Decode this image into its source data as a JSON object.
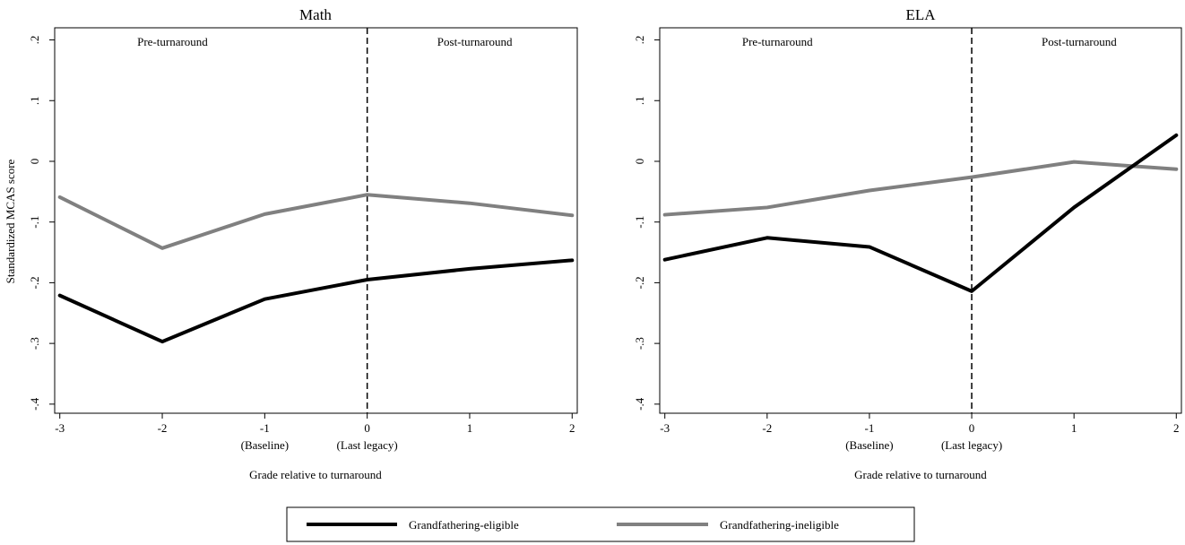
{
  "figure": {
    "ylabel": "Standardized MCAS score",
    "colors": {
      "eligible": "#000000",
      "ineligible": "#808080"
    }
  },
  "legend": {
    "items": [
      {
        "label": "Grandfathering-eligible",
        "color": "#000000"
      },
      {
        "label": "Grandfathering-ineligible",
        "color": "#808080"
      }
    ]
  },
  "chart_data": [
    {
      "type": "line",
      "title": "Math",
      "xlabel": "Grade relative to turnaround",
      "ylabel": "Standardized MCAS score",
      "x": [
        -3,
        -2,
        -1,
        0,
        1,
        2
      ],
      "xticks": [
        {
          "value": -3,
          "label": "-3",
          "sublabel": ""
        },
        {
          "value": -2,
          "label": "-2",
          "sublabel": ""
        },
        {
          "value": -1,
          "label": "-1",
          "sublabel": "(Baseline)"
        },
        {
          "value": 0,
          "label": "0",
          "sublabel": "(Last legacy)"
        },
        {
          "value": 1,
          "label": "1",
          "sublabel": ""
        },
        {
          "value": 2,
          "label": "2",
          "sublabel": ""
        }
      ],
      "yticks": [
        {
          "value": 0.2,
          "label": ".2"
        },
        {
          "value": 0.1,
          "label": ".1"
        },
        {
          "value": 0,
          "label": "0"
        },
        {
          "value": -0.1,
          "label": "-.1"
        },
        {
          "value": -0.2,
          "label": "-.2"
        },
        {
          "value": -0.3,
          "label": "-.3"
        },
        {
          "value": -0.4,
          "label": "-.4"
        }
      ],
      "xlim": [
        -3.05,
        2.05
      ],
      "ylim": [
        -0.415,
        0.22
      ],
      "vline": 0,
      "annotations": {
        "pre": "Pre-turnaround",
        "post": "Post-turnaround"
      },
      "series": [
        {
          "name": "Grandfathering-eligible",
          "color": "#000000",
          "values": [
            -0.221,
            -0.297,
            -0.227,
            -0.195,
            -0.177,
            -0.163
          ]
        },
        {
          "name": "Grandfathering-ineligible",
          "color": "#808080",
          "values": [
            -0.059,
            -0.143,
            -0.087,
            -0.055,
            -0.069,
            -0.089
          ]
        }
      ]
    },
    {
      "type": "line",
      "title": "ELA",
      "xlabel": "Grade relative to turnaround",
      "ylabel": "",
      "x": [
        -3,
        -2,
        -1,
        0,
        1,
        2
      ],
      "xticks": [
        {
          "value": -3,
          "label": "-3",
          "sublabel": ""
        },
        {
          "value": -2,
          "label": "-2",
          "sublabel": ""
        },
        {
          "value": -1,
          "label": "-1",
          "sublabel": "(Baseline)"
        },
        {
          "value": 0,
          "label": "0",
          "sublabel": "(Last legacy)"
        },
        {
          "value": 1,
          "label": "1",
          "sublabel": ""
        },
        {
          "value": 2,
          "label": "2",
          "sublabel": ""
        }
      ],
      "yticks": [
        {
          "value": 0.2,
          "label": ".2"
        },
        {
          "value": 0.1,
          "label": ".1"
        },
        {
          "value": 0,
          "label": "0"
        },
        {
          "value": -0.1,
          "label": "-.1"
        },
        {
          "value": -0.2,
          "label": "-.2"
        },
        {
          "value": -0.3,
          "label": "-.3"
        },
        {
          "value": -0.4,
          "label": "-.4"
        }
      ],
      "xlim": [
        -3.05,
        2.05
      ],
      "ylim": [
        -0.415,
        0.22
      ],
      "vline": 0,
      "annotations": {
        "pre": "Pre-turnaround",
        "post": "Post-turnaround"
      },
      "series": [
        {
          "name": "Grandfathering-eligible",
          "color": "#000000",
          "values": [
            -0.162,
            -0.126,
            -0.141,
            -0.214,
            -0.076,
            0.043
          ]
        },
        {
          "name": "Grandfathering-ineligible",
          "color": "#808080",
          "values": [
            -0.088,
            -0.076,
            -0.048,
            -0.026,
            -0.001,
            -0.013
          ]
        }
      ]
    }
  ]
}
